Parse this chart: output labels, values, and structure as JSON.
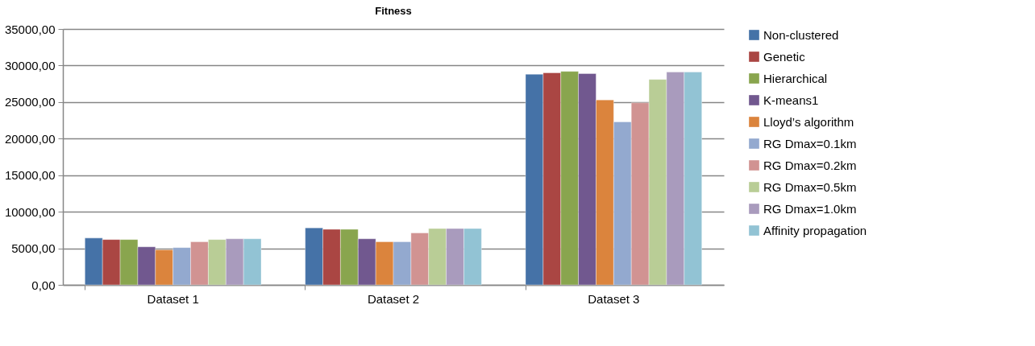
{
  "chart_data": {
    "type": "bar",
    "title": "Fitness",
    "categories": [
      "Dataset 1",
      "Dataset 2",
      "Dataset 3"
    ],
    "series": [
      {
        "name": "Non-clustered",
        "color": "#4572a7",
        "values": [
          6400,
          7800,
          28800
        ]
      },
      {
        "name": "Genetic",
        "color": "#aa4643",
        "values": [
          6200,
          7600,
          29000
        ]
      },
      {
        "name": "Hierarchical",
        "color": "#89a54e",
        "values": [
          6200,
          7600,
          29200
        ]
      },
      {
        "name": "K-means1",
        "color": "#71588f",
        "values": [
          5200,
          6300,
          28900
        ]
      },
      {
        "name": "Lloyd’s algorithm",
        "color": "#db843d",
        "values": [
          4800,
          5900,
          25300
        ]
      },
      {
        "name": "RG Dmax=0.1km",
        "color": "#93a9cf",
        "values": [
          5100,
          5900,
          22300
        ]
      },
      {
        "name": "RG Dmax=0.2km",
        "color": "#d19392",
        "values": [
          5900,
          7100,
          24900
        ]
      },
      {
        "name": "RG Dmax=0.5km",
        "color": "#b9cd96",
        "values": [
          6200,
          7700,
          28100
        ]
      },
      {
        "name": "RG Dmax=1.0km",
        "color": "#a99bbd",
        "values": [
          6300,
          7700,
          29100
        ]
      },
      {
        "name": "Affinity propagation",
        "color": "#92c3d4",
        "values": [
          6300,
          7700,
          29100
        ]
      }
    ],
    "ylim": [
      0,
      35000
    ],
    "yticks": [
      {
        "value": 0,
        "label": "0,00"
      },
      {
        "value": 5000,
        "label": "5000,00"
      },
      {
        "value": 10000,
        "label": "10000,00"
      },
      {
        "value": 15000,
        "label": "15000,00"
      },
      {
        "value": 20000,
        "label": "20000,00"
      },
      {
        "value": 25000,
        "label": "25000,00"
      },
      {
        "value": 30000,
        "label": "30000,00"
      },
      {
        "value": 35000,
        "label": "35000,00"
      }
    ],
    "grid": "y",
    "legend": "right"
  }
}
